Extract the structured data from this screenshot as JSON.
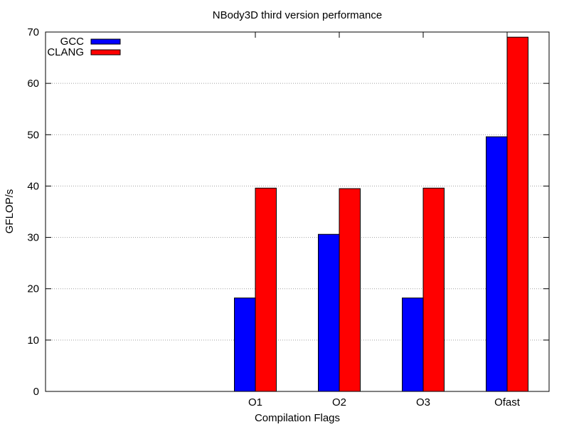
{
  "chart_data": {
    "type": "bar",
    "title": "NBody3D third version performance",
    "xlabel": "Compilation Flags",
    "ylabel": "GFLOP/s",
    "categories": [
      "O1",
      "O2",
      "O3",
      "Ofast"
    ],
    "category_slots": 6,
    "category_offset": 2,
    "series": [
      {
        "name": "GCC",
        "color": "#0000ff",
        "values": [
          18.2,
          30.6,
          18.2,
          49.6
        ]
      },
      {
        "name": "CLANG",
        "color": "#ff0000",
        "values": [
          39.6,
          39.5,
          39.6,
          69.0
        ]
      }
    ],
    "ylim": [
      0,
      70
    ],
    "yticks": [
      0,
      10,
      20,
      30,
      40,
      50,
      60,
      70
    ],
    "grid": true,
    "grid_axis": "y",
    "legend_position": "top-left"
  }
}
